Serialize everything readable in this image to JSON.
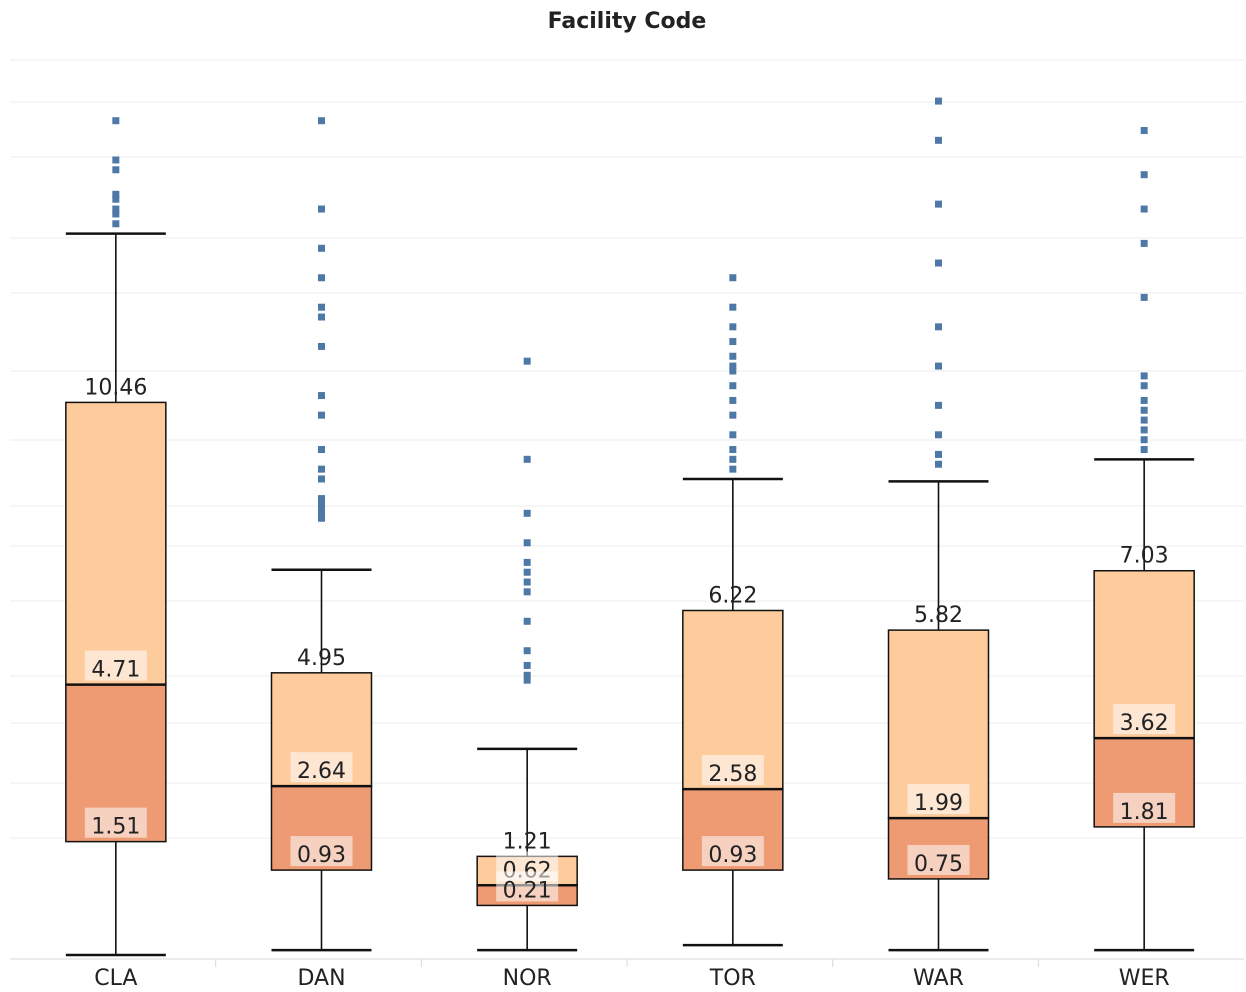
{
  "chart_data": {
    "type": "box",
    "title": "Facility Code",
    "xlabel": "",
    "ylabel": "",
    "categories": [
      "CLA",
      "DAN",
      "NOR",
      "TOR",
      "WAR",
      "WER"
    ],
    "ylim": [
      -0.8,
      17.6
    ],
    "grid": "horizontal",
    "colors": {
      "upper_box": "#fdcb9c",
      "lower_box": "#ee9a73",
      "outlier": "#4e79a7",
      "whisker": "#111111"
    },
    "boxes": [
      {
        "category": "CLA",
        "lower_whisker": -0.8,
        "q1": 1.51,
        "median": 4.71,
        "q3": 10.46,
        "upper_whisker": 13.9,
        "outliers": [
          14.1,
          14.3,
          14.4,
          14.6,
          14.7,
          15.2,
          15.4,
          16.2
        ]
      },
      {
        "category": "DAN",
        "lower_whisker": -0.7,
        "q1": 0.93,
        "median": 2.64,
        "q3": 4.95,
        "upper_whisker": 7.05,
        "outliers": [
          8.1,
          8.2,
          8.3,
          8.4,
          8.5,
          8.9,
          9.1,
          9.5,
          10.2,
          10.6,
          11.6,
          12.2,
          12.4,
          13.0,
          13.6,
          14.4,
          16.2
        ]
      },
      {
        "category": "NOR",
        "lower_whisker": -0.7,
        "q1": 0.21,
        "median": 0.62,
        "q3": 1.21,
        "upper_whisker": 3.4,
        "outliers": [
          4.8,
          4.9,
          5.1,
          5.4,
          6.0,
          6.6,
          6.8,
          7.0,
          7.2,
          7.6,
          8.2,
          9.3,
          11.3
        ]
      },
      {
        "category": "TOR",
        "lower_whisker": -0.6,
        "q1": 0.93,
        "median": 2.58,
        "q3": 6.22,
        "upper_whisker": 8.9,
        "outliers": [
          9.1,
          9.3,
          9.5,
          9.8,
          10.2,
          10.5,
          10.8,
          11.1,
          11.2,
          11.4,
          11.7,
          12.0,
          12.4,
          13.0
        ]
      },
      {
        "category": "WAR",
        "lower_whisker": -0.7,
        "q1": 0.75,
        "median": 1.99,
        "q3": 5.82,
        "upper_whisker": 8.85,
        "outliers": [
          9.2,
          9.4,
          9.8,
          10.4,
          11.2,
          12.0,
          13.3,
          14.5,
          15.8,
          16.6
        ]
      },
      {
        "category": "WER",
        "lower_whisker": -0.7,
        "q1": 1.81,
        "median": 3.62,
        "q3": 7.03,
        "upper_whisker": 9.3,
        "outliers": [
          9.5,
          9.7,
          9.9,
          10.1,
          10.3,
          10.5,
          10.8,
          11.0,
          12.6,
          13.7,
          14.4,
          15.1,
          16.0
        ]
      }
    ]
  }
}
